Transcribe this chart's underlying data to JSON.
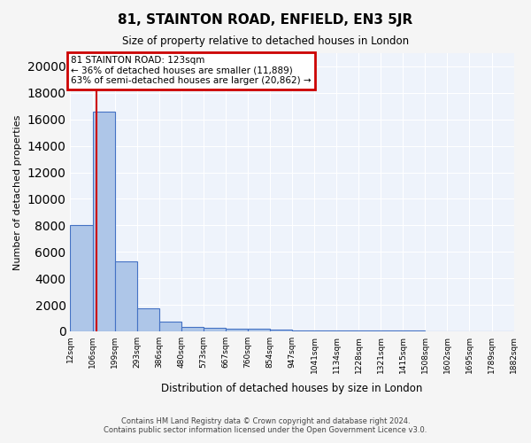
{
  "title": "81, STAINTON ROAD, ENFIELD, EN3 5JR",
  "subtitle": "Size of property relative to detached houses in London",
  "xlabel": "Distribution of detached houses by size in London",
  "ylabel": "Number of detached properties",
  "bar_color": "#aec6e8",
  "bar_edge_color": "#4472c4",
  "bg_color": "#eef3fb",
  "grid_color": "#ffffff",
  "bin_edges": [
    12,
    106,
    199,
    293,
    386,
    480,
    573,
    667,
    760,
    854,
    947,
    1041,
    1134,
    1228,
    1321,
    1415,
    1508,
    1602,
    1695,
    1789,
    1882
  ],
  "bar_heights": [
    8050,
    16600,
    5300,
    1750,
    700,
    350,
    250,
    200,
    200,
    150,
    80,
    60,
    50,
    40,
    35,
    30,
    25,
    20,
    15,
    10
  ],
  "property_size": 123,
  "annotation_title": "81 STAINTON ROAD: 123sqm",
  "annotation_line1": "← 36% of detached houses are smaller (11,889)",
  "annotation_line2": "63% of semi-detached houses are larger (20,862) →",
  "annotation_box_color": "#cc0000",
  "annotation_text_color": "#000000",
  "vline_color": "#cc0000",
  "ylim": [
    0,
    21000
  ],
  "yticks": [
    0,
    2000,
    4000,
    6000,
    8000,
    10000,
    12000,
    14000,
    16000,
    18000,
    20000
  ],
  "x_tick_labels": [
    "12sqm",
    "106sqm",
    "199sqm",
    "293sqm",
    "386sqm",
    "480sqm",
    "573sqm",
    "667sqm",
    "760sqm",
    "854sqm",
    "947sqm",
    "1041sqm",
    "1134sqm",
    "1228sqm",
    "1321sqm",
    "1415sqm",
    "1508sqm",
    "1602sqm",
    "1695sqm",
    "1789sqm",
    "1882sqm"
  ],
  "footer_line1": "Contains HM Land Registry data © Crown copyright and database right 2024.",
  "footer_line2": "Contains public sector information licensed under the Open Government Licence v3.0."
}
